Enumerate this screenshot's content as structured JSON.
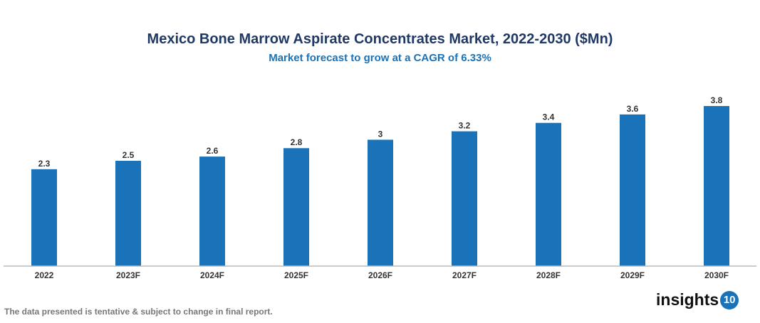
{
  "chart_data": {
    "type": "bar",
    "title": "Mexico Bone Marrow Aspirate Concentrates Market, 2022-2030 ($Mn)",
    "subtitle": "Market forecast to grow at a CAGR of 6.33%",
    "categories": [
      "2022",
      "2023F",
      "2024F",
      "2025F",
      "2026F",
      "2027F",
      "2028F",
      "2029F",
      "2030F"
    ],
    "values": [
      2.3,
      2.5,
      2.6,
      2.8,
      3,
      3.2,
      3.4,
      3.6,
      3.8
    ],
    "xlabel": "",
    "ylabel": "",
    "ylim": [
      0,
      3.8
    ],
    "grid": false,
    "bar_color": "#1a73b8",
    "data_labels": true
  },
  "footnote": "The data presented is tentative & subject to change in final report.",
  "logo": {
    "text": "insights",
    "badge": "10"
  }
}
